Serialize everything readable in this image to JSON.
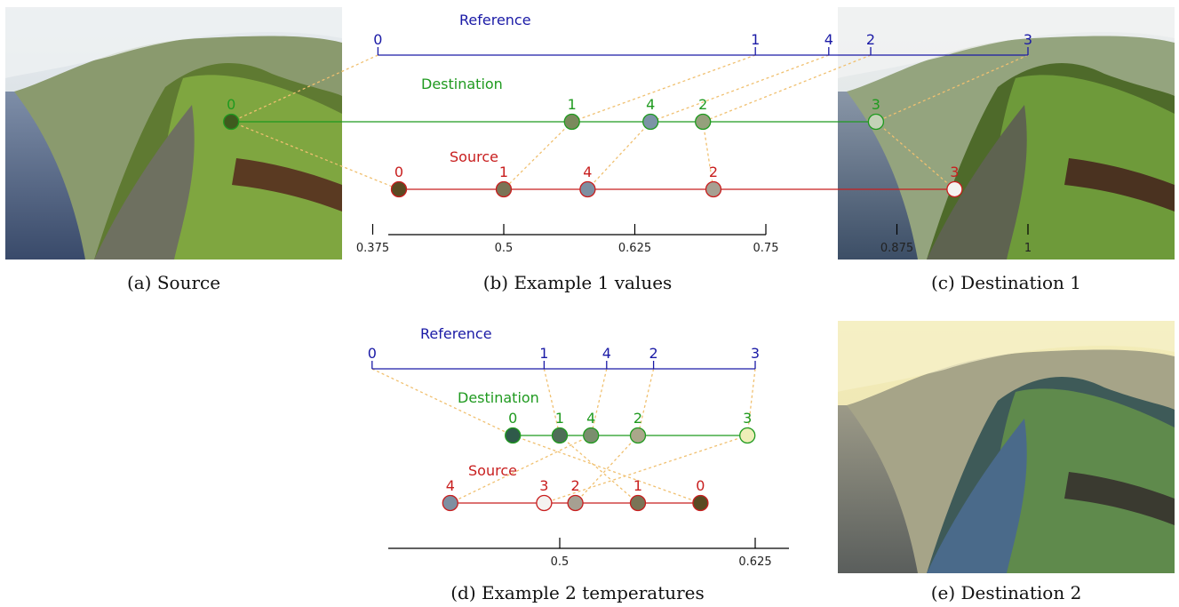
{
  "captions": {
    "a": "(a) Source",
    "b": "(b) Example 1 values",
    "c": "(c) Destination 1",
    "d": "(d) Example 2 temperatures",
    "e": "(e) Destination 2"
  },
  "colors": {
    "reference": "#1a1aa6",
    "destination": "#1f9a1f",
    "source": "#c81e1e",
    "mapping": "#f0c070",
    "axis": "#000000"
  },
  "example1": {
    "reference_label": "Reference",
    "destination_label": "Destination",
    "source_label": "Source",
    "axis": {
      "ticks": [
        0.375,
        0.5,
        0.625,
        0.75,
        0.875,
        1
      ],
      "tick_labels": [
        "0.375",
        "0.5",
        "0.625",
        "0.75",
        "0.875",
        "1"
      ]
    },
    "reference": [
      {
        "label": "0",
        "value": 0.38
      },
      {
        "label": "1",
        "value": 0.74
      },
      {
        "label": "4",
        "value": 0.81
      },
      {
        "label": "2",
        "value": 0.85
      },
      {
        "label": "3",
        "value": 1.0
      }
    ],
    "destination": [
      {
        "label": "0",
        "value": 0.24,
        "fill": "#3f5a1e"
      },
      {
        "label": "1",
        "value": 0.565,
        "fill": "#7a8a5c"
      },
      {
        "label": "4",
        "value": 0.64,
        "fill": "#7c94a6"
      },
      {
        "label": "2",
        "value": 0.69,
        "fill": "#95a07c"
      },
      {
        "label": "3",
        "value": 0.855,
        "fill": "#c3d2b7"
      }
    ],
    "source": [
      {
        "label": "0",
        "value": 0.4,
        "fill": "#5a4a22"
      },
      {
        "label": "1",
        "value": 0.5,
        "fill": "#7a7456"
      },
      {
        "label": "4",
        "value": 0.58,
        "fill": "#7e8fa1"
      },
      {
        "label": "2",
        "value": 0.7,
        "fill": "#a6a092"
      },
      {
        "label": "3",
        "value": 0.93,
        "fill": "#f4f2f0"
      }
    ]
  },
  "example2": {
    "reference_label": "Reference",
    "destination_label": "Destination",
    "source_label": "Source",
    "axis": {
      "ticks": [
        0.5,
        0.625
      ],
      "tick_labels": [
        "0.5",
        "0.625"
      ]
    },
    "reference": [
      {
        "label": "0",
        "value": 0.38
      },
      {
        "label": "1",
        "value": 0.49
      },
      {
        "label": "4",
        "value": 0.53
      },
      {
        "label": "2",
        "value": 0.56
      },
      {
        "label": "3",
        "value": 0.625
      }
    ],
    "destination": [
      {
        "label": "0",
        "value": 0.47,
        "fill": "#2f5a4a"
      },
      {
        "label": "1",
        "value": 0.5,
        "fill": "#4f6e58"
      },
      {
        "label": "4",
        "value": 0.52,
        "fill": "#7a8e6e"
      },
      {
        "label": "2",
        "value": 0.55,
        "fill": "#aaa78a"
      },
      {
        "label": "3",
        "value": 0.62,
        "fill": "#eeeeb8"
      }
    ],
    "source": [
      {
        "label": "4",
        "value": 0.43,
        "fill": "#7e8fa1"
      },
      {
        "label": "3",
        "value": 0.49,
        "fill": "#f4f2f0"
      },
      {
        "label": "2",
        "value": 0.51,
        "fill": "#a6a092"
      },
      {
        "label": "1",
        "value": 0.55,
        "fill": "#7a7456"
      },
      {
        "label": "0",
        "value": 0.59,
        "fill": "#5a4a22"
      }
    ]
  }
}
